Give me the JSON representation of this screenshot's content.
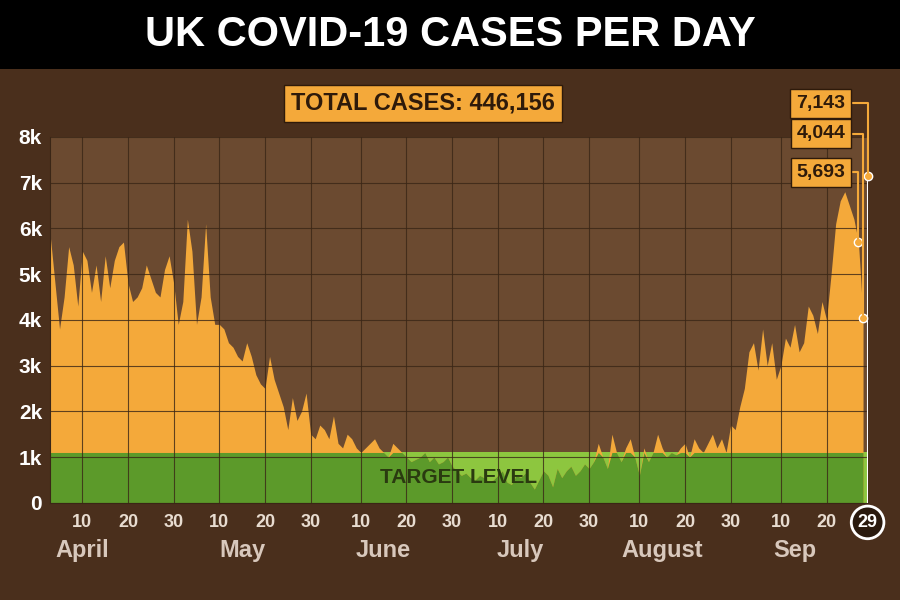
{
  "chart_data": {
    "type": "area",
    "title": "UK COVID-19 CASES PER DAY",
    "subtitle": "TOTAL CASES: 446,156",
    "color": "#f4a93a",
    "categories": [
      null,
      null,
      null,
      null,
      null,
      null,
      null,
      "10",
      null,
      null,
      null,
      null,
      null,
      null,
      null,
      null,
      null,
      "20",
      null,
      null,
      null,
      null,
      null,
      null,
      null,
      null,
      null,
      "30",
      null,
      null,
      null,
      null,
      null,
      null,
      null,
      null,
      null,
      "10",
      null,
      null,
      null,
      null,
      null,
      null,
      null,
      null,
      null,
      "20",
      null,
      null,
      null,
      null,
      null,
      null,
      null,
      null,
      null,
      "30",
      null,
      null,
      null,
      null,
      null,
      null,
      null,
      null,
      null,
      null,
      "10",
      null,
      null,
      null,
      null,
      null,
      null,
      null,
      null,
      null,
      "20",
      null,
      null,
      null,
      null,
      null,
      null,
      null,
      null,
      null,
      "30",
      null,
      null,
      null,
      null,
      null,
      null,
      null,
      null,
      null,
      "10",
      null,
      null,
      null,
      null,
      null,
      null,
      null,
      null,
      null,
      "20",
      null,
      null,
      null,
      null,
      null,
      null,
      null,
      null,
      null,
      "30",
      null,
      null,
      null,
      null,
      null,
      null,
      null,
      null,
      null,
      null,
      "10",
      null,
      null,
      null,
      null,
      null,
      null,
      null,
      null,
      null,
      "20",
      null,
      null,
      null,
      null,
      null,
      null,
      null,
      null,
      null,
      "30",
      null,
      null,
      null,
      null,
      null,
      null,
      null,
      null,
      null,
      null,
      "10",
      null,
      null,
      null,
      null,
      null,
      null,
      null,
      null,
      null,
      "20",
      null,
      null,
      null,
      null,
      null,
      null,
      null,
      null,
      "29"
    ],
    "month_labels": [
      null,
      null,
      null,
      null,
      null,
      null,
      null,
      "April",
      null,
      null,
      null,
      null,
      null,
      null,
      null,
      null,
      null,
      null,
      null,
      null,
      null,
      null,
      null,
      null,
      null,
      null,
      null,
      null,
      null,
      null,
      null,
      null,
      null,
      null,
      null,
      null,
      null,
      null,
      null,
      null,
      null,
      null,
      "May",
      null,
      null,
      null,
      null,
      null,
      null,
      null,
      null,
      null,
      null,
      null,
      null,
      null,
      null,
      null,
      null,
      null,
      null,
      null,
      null,
      null,
      null,
      null,
      null,
      null,
      null,
      null,
      null,
      null,
      null,
      "June",
      null,
      null,
      null,
      null,
      null,
      null,
      null,
      null,
      null,
      null,
      null,
      null,
      null,
      null,
      null,
      null,
      null,
      null,
      null,
      null,
      null,
      null,
      null,
      null,
      null,
      null,
      null,
      null,
      null,
      "July",
      null,
      null,
      null,
      null,
      null,
      null,
      null,
      null,
      null,
      null,
      null,
      null,
      null,
      null,
      null,
      null,
      null,
      null,
      null,
      null,
      null,
      null,
      null,
      null,
      null,
      null,
      null,
      null,
      null,
      null,
      "August",
      null,
      null,
      null,
      null,
      null,
      null,
      null,
      null,
      null,
      null,
      null,
      null,
      null,
      null,
      null,
      null,
      null,
      null,
      null,
      null,
      null,
      null,
      null,
      null,
      null,
      null,
      null,
      null,
      "Sep",
      null,
      null,
      null,
      null,
      null,
      null,
      null,
      null,
      null,
      null,
      null,
      null,
      null,
      null,
      null,
      null
    ],
    "values": [
      5800,
      4800,
      3800,
      4500,
      5600,
      5200,
      4300,
      5500,
      5300,
      4600,
      5200,
      4400,
      5400,
      4700,
      5300,
      5600,
      5700,
      4800,
      4400,
      4500,
      4700,
      5200,
      4900,
      4600,
      4500,
      5100,
      5400,
      4800,
      3900,
      4400,
      6200,
      5500,
      3900,
      4500,
      6100,
      4500,
      3900,
      3900,
      3800,
      3500,
      3400,
      3200,
      3100,
      3500,
      3200,
      2800,
      2600,
      2500,
      3200,
      2700,
      2400,
      2100,
      1600,
      2300,
      1800,
      2000,
      2400,
      1500,
      1400,
      1700,
      1600,
      1400,
      1900,
      1300,
      1200,
      1500,
      1400,
      1200,
      1100,
      1200,
      1300,
      1400,
      1200,
      1100,
      1000,
      1300,
      1200,
      1100,
      1000,
      900,
      950,
      1000,
      1100,
      900,
      1000,
      850,
      900,
      1000,
      800,
      700,
      600,
      650,
      550,
      500,
      600,
      550,
      450,
      500,
      600,
      700,
      450,
      400,
      600,
      550,
      650,
      450,
      300,
      500,
      700,
      600,
      350,
      750,
      550,
      700,
      800,
      600,
      700,
      850,
      750,
      900,
      1300,
      1000,
      750,
      1500,
      1100,
      900,
      1200,
      1400,
      1000,
      600,
      1200,
      900,
      1100,
      1500,
      1200,
      1000,
      1100,
      1050,
      1200,
      1300,
      1000,
      1400,
      1200,
      1100,
      1300,
      1500,
      1200,
      1400,
      1100,
      1700,
      1600,
      2100,
      2500,
      3300,
      3500,
      2900,
      3800,
      3000,
      3500,
      2700,
      3000,
      3600,
      3400,
      3900,
      3300,
      3500,
      4300,
      4100,
      3700,
      4400,
      4000,
      5000,
      6100,
      6600,
      6800,
      6500,
      6200,
      5693,
      4044,
      null
    ],
    "annotations": [
      {
        "index": 179,
        "value": 7143,
        "label": "7,143"
      },
      {
        "index": 178,
        "value": 4044,
        "label": "4,044"
      },
      {
        "index": 177,
        "value": 5693,
        "label": "5,693"
      }
    ],
    "target": {
      "label": "TARGET LEVEL",
      "value": 1100,
      "color": "#8dc63f"
    },
    "ylim": [
      0,
      8000
    ],
    "yticks": [
      0,
      {
        "value": 1000,
        "label": "1k"
      },
      {
        "value": 2000,
        "label": "2k"
      },
      {
        "value": 3000,
        "label": "3k"
      },
      {
        "value": 4000,
        "label": "4k"
      },
      {
        "value": 5000,
        "label": "5k"
      },
      {
        "value": 6000,
        "label": "6k"
      },
      {
        "value": 7000,
        "label": "7k"
      },
      {
        "value": 8000,
        "label": "8k"
      }
    ],
    "grid": true
  }
}
